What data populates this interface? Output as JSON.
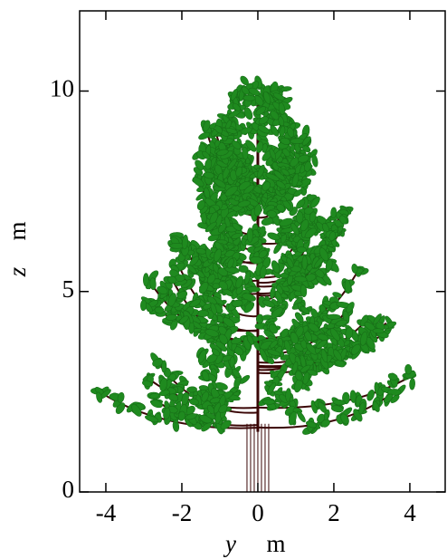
{
  "chart_data": {
    "type": "tree",
    "xlabel": "y",
    "xlabel_unit": "m",
    "ylabel": "z",
    "ylabel_unit": "m",
    "xlim": [
      -4.69,
      4.93
    ],
    "ylim": [
      0,
      12
    ],
    "xticks": [
      -4,
      -2,
      0,
      2,
      4
    ],
    "yticks": [
      0,
      5,
      10
    ]
  }
}
